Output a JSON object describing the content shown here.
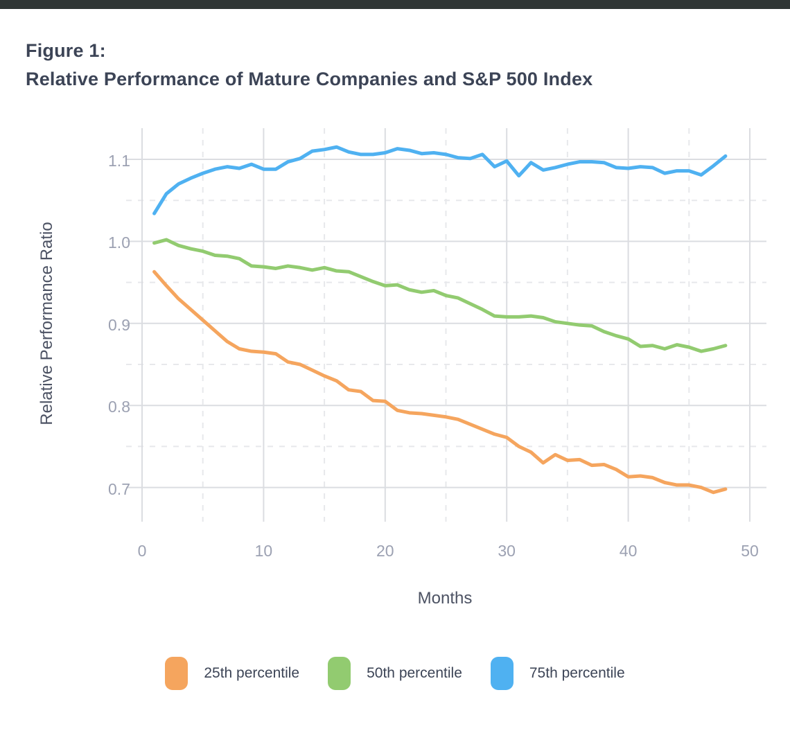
{
  "page": {
    "top_bar_color": "#2E3534",
    "background": "#FFFFFF",
    "title_color": "#3C4456",
    "tick_label_color": "#9CA1B2",
    "axis_title_color": "#4C5263",
    "grid_solid_color": "#DBDDE1",
    "grid_dashed_color": "#E7E8EB"
  },
  "title": {
    "line1": "Figure 1:",
    "line2": "Relative Performance of Mature Companies and S&P 500 Index"
  },
  "chart_data": {
    "type": "line",
    "title": "Figure 1: Relative Performance of Mature Companies and S&P 500 Index",
    "xlabel": "Months",
    "ylabel": "Relative Performance Ratio",
    "xlim": [
      0,
      50
    ],
    "ylim": [
      0.66,
      1.14
    ],
    "grid": true,
    "legend_position": "bottom",
    "x_ticks": [
      0,
      10,
      20,
      30,
      40,
      50
    ],
    "x_minor_gridlines": [
      5,
      15,
      25,
      35,
      45
    ],
    "y_ticks": [
      "1.1",
      "1.0",
      "0.9",
      "0.8",
      "0.7"
    ],
    "y_tick_values": [
      1.1,
      1.0,
      0.9,
      0.8,
      0.7
    ],
    "y_minor_gridlines": [
      1.05,
      0.95,
      0.85,
      0.75
    ],
    "x": [
      1,
      2,
      3,
      4,
      5,
      6,
      7,
      8,
      9,
      10,
      11,
      12,
      13,
      14,
      15,
      16,
      17,
      18,
      19,
      20,
      21,
      22,
      23,
      24,
      25,
      26,
      27,
      28,
      29,
      30,
      31,
      32,
      33,
      34,
      35,
      36,
      37,
      38,
      39,
      40,
      41,
      42,
      43,
      44,
      45,
      46,
      47,
      48
    ],
    "series": [
      {
        "name": "25th percentile",
        "color": "#F5A55E",
        "values": [
          0.963,
          0.946,
          0.93,
          0.917,
          0.904,
          0.891,
          0.878,
          0.869,
          0.866,
          0.865,
          0.863,
          0.853,
          0.85,
          0.843,
          0.836,
          0.83,
          0.819,
          0.817,
          0.806,
          0.805,
          0.794,
          0.791,
          0.79,
          0.788,
          0.786,
          0.783,
          0.777,
          0.771,
          0.765,
          0.761,
          0.75,
          0.743,
          0.73,
          0.74,
          0.733,
          0.734,
          0.727,
          0.728,
          0.722,
          0.713,
          0.714,
          0.712,
          0.706,
          0.703,
          0.703,
          0.7,
          0.694,
          0.698
        ]
      },
      {
        "name": "50th percentile",
        "color": "#92CB70",
        "values": [
          0.998,
          1.002,
          0.995,
          0.991,
          0.988,
          0.983,
          0.982,
          0.979,
          0.97,
          0.969,
          0.967,
          0.97,
          0.968,
          0.965,
          0.968,
          0.964,
          0.963,
          0.957,
          0.951,
          0.946,
          0.947,
          0.941,
          0.938,
          0.94,
          0.934,
          0.931,
          0.924,
          0.917,
          0.909,
          0.908,
          0.908,
          0.909,
          0.907,
          0.902,
          0.9,
          0.898,
          0.897,
          0.89,
          0.885,
          0.881,
          0.872,
          0.873,
          0.869,
          0.874,
          0.871,
          0.866,
          0.869,
          0.873
        ]
      },
      {
        "name": "75th percentile",
        "color": "#4FB1F1",
        "values": [
          1.034,
          1.058,
          1.07,
          1.077,
          1.083,
          1.088,
          1.091,
          1.089,
          1.094,
          1.088,
          1.088,
          1.097,
          1.101,
          1.11,
          1.112,
          1.115,
          1.109,
          1.106,
          1.106,
          1.108,
          1.113,
          1.111,
          1.107,
          1.108,
          1.106,
          1.102,
          1.101,
          1.106,
          1.091,
          1.098,
          1.08,
          1.096,
          1.087,
          1.09,
          1.094,
          1.097,
          1.097,
          1.096,
          1.09,
          1.089,
          1.091,
          1.09,
          1.083,
          1.086,
          1.086,
          1.081,
          1.092,
          1.104
        ]
      }
    ],
    "legend": [
      "25th percentile",
      "50th percentile",
      "75th percentile"
    ]
  }
}
